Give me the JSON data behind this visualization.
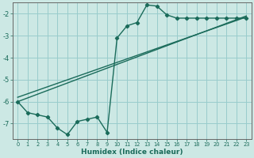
{
  "xlabel": "Humidex (Indice chaleur)",
  "bg_color": "#cce8e4",
  "grid_color": "#99cccc",
  "line_color": "#1a6b5a",
  "xlim": [
    -0.5,
    23.5
  ],
  "ylim": [
    -7.7,
    -1.5
  ],
  "yticks": [
    -7,
    -6,
    -5,
    -4,
    -3,
    -2
  ],
  "xticks": [
    0,
    1,
    2,
    3,
    4,
    5,
    6,
    7,
    8,
    9,
    10,
    11,
    12,
    13,
    14,
    15,
    16,
    17,
    18,
    19,
    20,
    21,
    22,
    23
  ],
  "line1_x": [
    0,
    23
  ],
  "line1_y": [
    -6.0,
    -2.1
  ],
  "line2_x": [
    0,
    23
  ],
  "line2_y": [
    -5.8,
    -2.15
  ],
  "series3_x": [
    0,
    1,
    2,
    3,
    4,
    5,
    6,
    7,
    8,
    9,
    10,
    11,
    12,
    13,
    14,
    15,
    16,
    17,
    18,
    19,
    20,
    21,
    22,
    23
  ],
  "series3_y": [
    -6.0,
    -6.5,
    -6.6,
    -6.7,
    -7.2,
    -7.5,
    -6.9,
    -6.8,
    -6.7,
    -7.4,
    -3.1,
    -2.55,
    -2.4,
    -1.6,
    -1.65,
    -2.05,
    -2.2,
    -2.2,
    -2.2,
    -2.2,
    -2.2,
    -2.2,
    -2.2,
    -2.2
  ]
}
